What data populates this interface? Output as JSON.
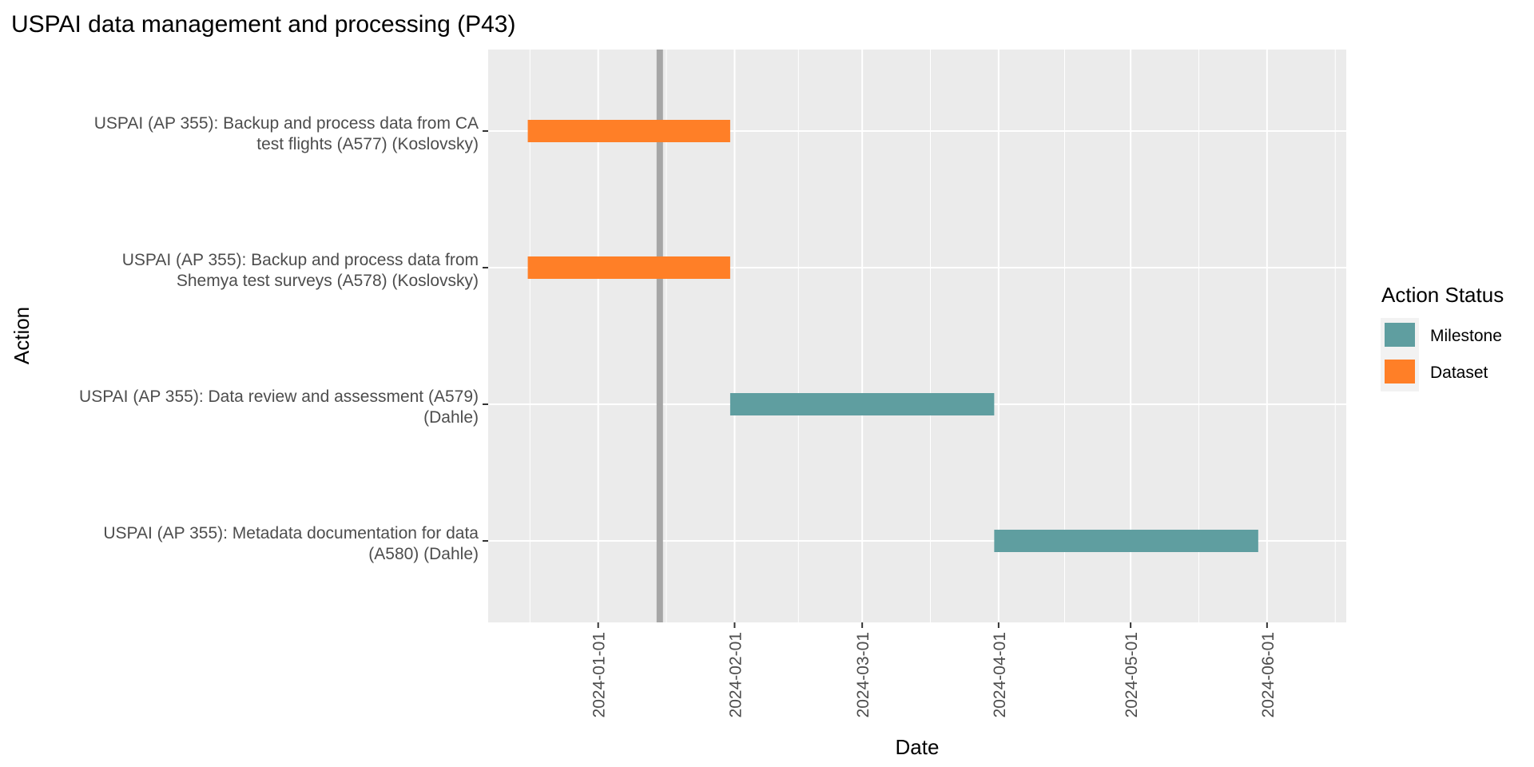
{
  "chart_data": {
    "type": "gantt",
    "title": "USPAI data management and processing (P43)",
    "xlabel": "Date",
    "ylabel": "Action",
    "x_ticks": [
      "2024-01-01",
      "2024-02-01",
      "2024-03-01",
      "2024-04-01",
      "2024-05-01",
      "2024-06-01"
    ],
    "xlim": [
      "2023-12-07",
      "2024-06-19"
    ],
    "today_marker": "2024-01-15",
    "grid": true,
    "legend": {
      "title": "Action Status",
      "position": "right",
      "items": [
        {
          "label": "Milestone",
          "color": "#5F9EA0"
        },
        {
          "label": "Dataset",
          "color": "#FF7F27"
        }
      ]
    },
    "tasks": [
      {
        "label_lines": [
          "USPAI (AP 355): Backup and process data from CA",
          "test flights (A577) (Koslovsky)"
        ],
        "start": "2023-12-16",
        "end": "2024-01-31",
        "status": "Dataset"
      },
      {
        "label_lines": [
          "USPAI (AP 355): Backup and process data from",
          "Shemya test surveys (A578) (Koslovsky)"
        ],
        "start": "2023-12-16",
        "end": "2024-01-31",
        "status": "Dataset"
      },
      {
        "label_lines": [
          "USPAI (AP 355): Data review and assessment (A579)",
          "(Dahle)"
        ],
        "start": "2024-01-31",
        "end": "2024-03-31",
        "status": "Milestone"
      },
      {
        "label_lines": [
          "USPAI (AP 355): Metadata documentation for data",
          "(A580) (Dahle)"
        ],
        "start": "2024-03-31",
        "end": "2024-05-30",
        "status": "Milestone"
      }
    ]
  }
}
